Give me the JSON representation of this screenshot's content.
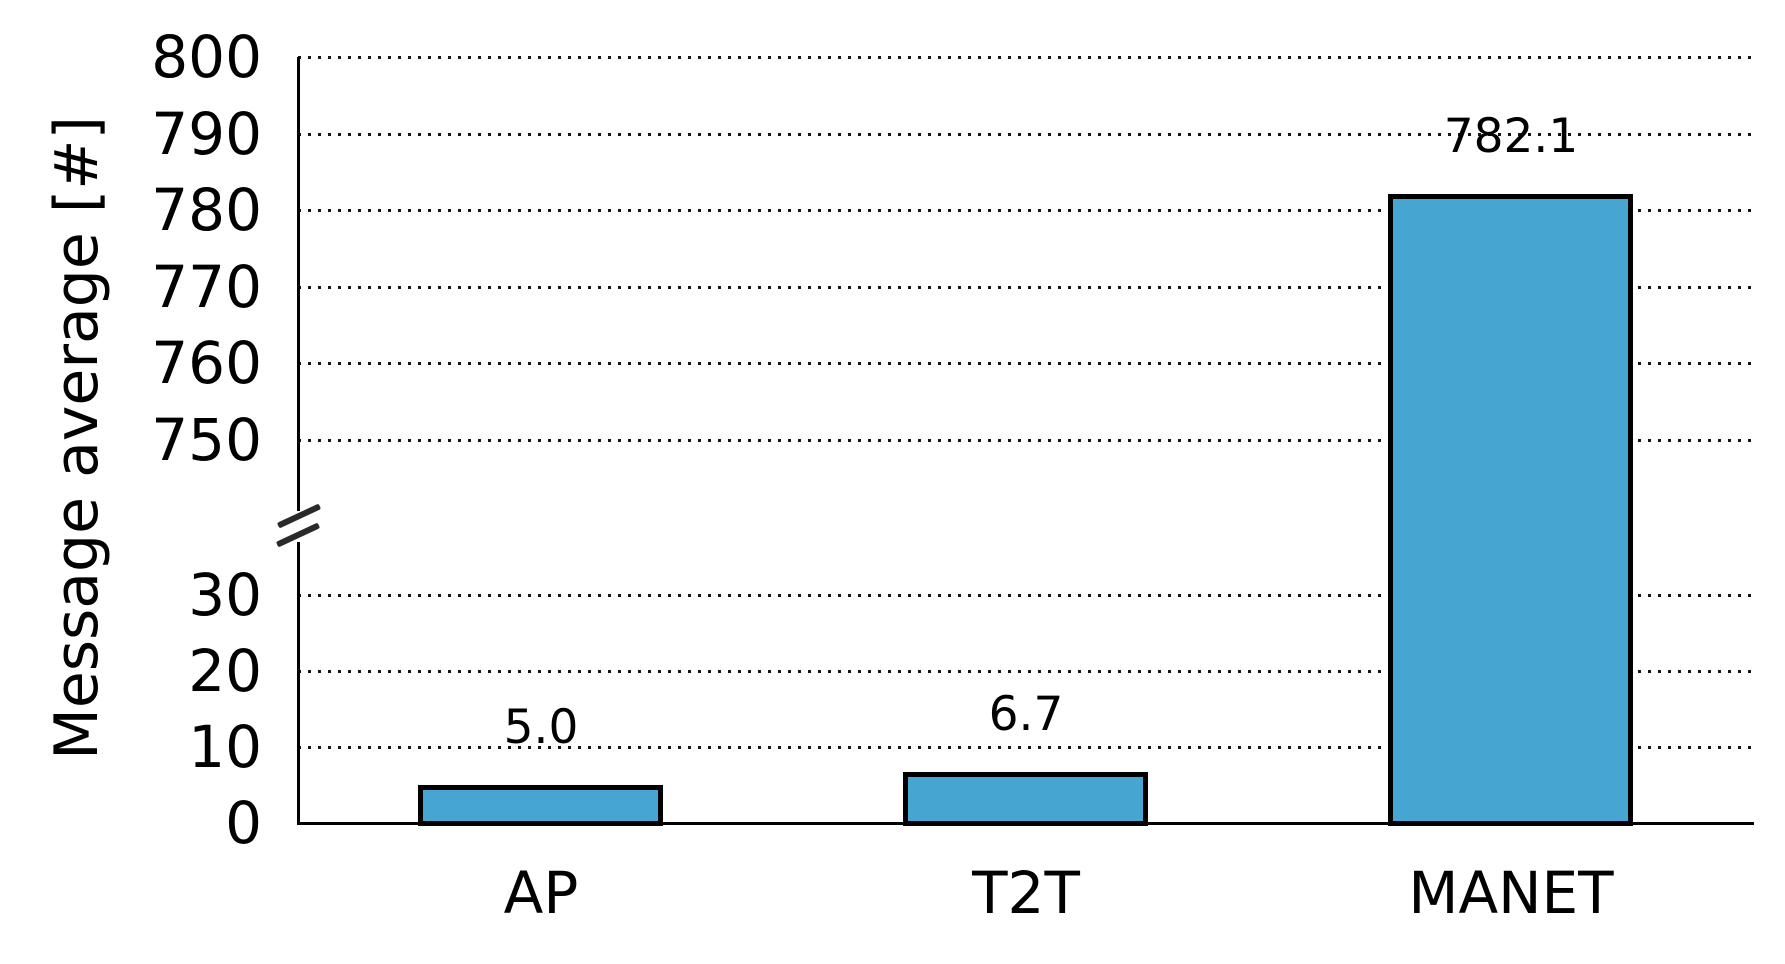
{
  "chart_data": {
    "type": "bar",
    "title": "",
    "xlabel": "",
    "ylabel": "Message average [#]",
    "categories": [
      "AP",
      "T2T",
      "MANET"
    ],
    "values": [
      5.0,
      6.7,
      782.1
    ],
    "value_labels": [
      "5.0",
      "6.7",
      "782.1"
    ],
    "y_ticks_lower": [
      0,
      10,
      20,
      30
    ],
    "y_ticks_upper": [
      750,
      760,
      770,
      780,
      790,
      800
    ],
    "axis_break": {
      "between_lower": 30,
      "between_upper": 750,
      "symbol": "slash-slash"
    },
    "grid": "dotted horizontal",
    "legend": "none",
    "colors": {
      "bar_fill": "#46a5d1",
      "bar_border": "#000000",
      "axis": "#000000",
      "grid_dots": "#161616",
      "text": "#000000",
      "background": "#ffffff"
    }
  }
}
